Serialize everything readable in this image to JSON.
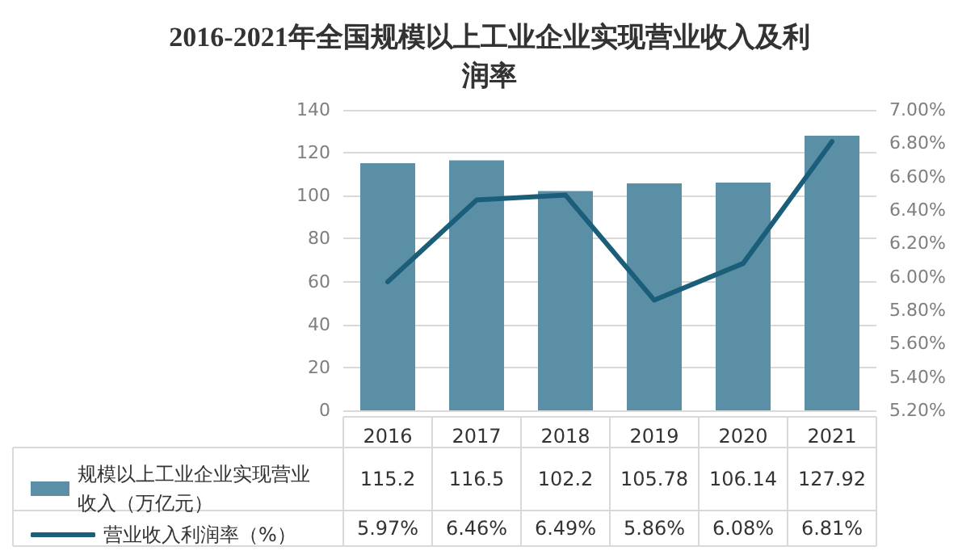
{
  "chart_data": {
    "type": "bar",
    "title": "2016-2021年全国规模以上工业企业实现营业收入及利润率",
    "categories": [
      "2016",
      "2017",
      "2018",
      "2019",
      "2020",
      "2021"
    ],
    "series": [
      {
        "name": "规模以上工业企业实现营业收入（万亿元）",
        "color": "#5b8fa5",
        "values": [
          115.2,
          116.5,
          102.2,
          105.78,
          106.14,
          127.92
        ],
        "value_labels": [
          "115.2",
          "116.5",
          "102.2",
          "105.78",
          "106.14",
          "127.92"
        ]
      },
      {
        "name": "营业收入利润率（%）",
        "type": "line",
        "axis": "y2",
        "color": "#1a5e7a",
        "values": [
          5.97,
          6.46,
          6.49,
          5.86,
          6.08,
          6.81
        ],
        "value_labels": [
          "5.97%",
          "6.46%",
          "6.49%",
          "5.86%",
          "6.08%",
          "6.81%"
        ]
      }
    ],
    "ylim": [
      0,
      140
    ],
    "yticks": [
      0,
      20,
      40,
      60,
      80,
      100,
      120,
      140
    ],
    "y2lim": [
      5.2,
      7.0
    ],
    "y2ticks": [
      {
        "value": 5.2,
        "label": "5.20%"
      },
      {
        "value": 5.4,
        "label": "5.40%"
      },
      {
        "value": 5.6,
        "label": "5.60%"
      },
      {
        "value": 5.8,
        "label": "5.80%"
      },
      {
        "value": 6.0,
        "label": "6.00%"
      },
      {
        "value": 6.2,
        "label": "6.20%"
      },
      {
        "value": 6.4,
        "label": "6.40%"
      },
      {
        "value": 6.6,
        "label": "6.60%"
      },
      {
        "value": 6.8,
        "label": "6.80%"
      },
      {
        "value": 7.0,
        "label": "7.00%"
      }
    ],
    "grid": "y",
    "legend": "bottom",
    "marker": "none",
    "line_style": "solid"
  }
}
